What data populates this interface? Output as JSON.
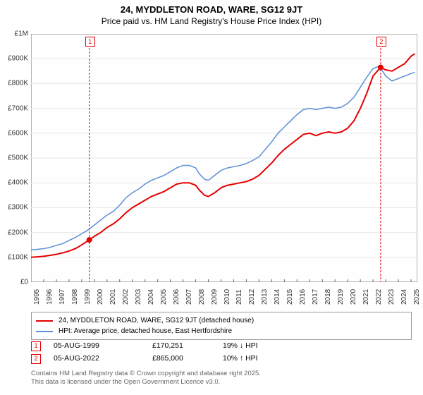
{
  "title": "24, MYDDLETON ROAD, WARE, SG12 9JT",
  "subtitle": "Price paid vs. HM Land Registry's House Price Index (HPI)",
  "chart": {
    "type": "line",
    "x_range": [
      1995,
      2025.5
    ],
    "y_range": [
      0,
      1000000
    ],
    "y_ticks": [
      0,
      100000,
      200000,
      300000,
      400000,
      500000,
      600000,
      700000,
      800000,
      900000,
      1000000
    ],
    "y_tick_labels": [
      "£0",
      "£100K",
      "£200K",
      "£300K",
      "£400K",
      "£500K",
      "£600K",
      "£700K",
      "£800K",
      "£900K",
      "£1M"
    ],
    "x_ticks": [
      1995,
      1996,
      1997,
      1998,
      1999,
      2000,
      2001,
      2002,
      2003,
      2004,
      2005,
      2006,
      2007,
      2008,
      2009,
      2010,
      2011,
      2012,
      2013,
      2014,
      2015,
      2016,
      2017,
      2018,
      2019,
      2020,
      2021,
      2022,
      2023,
      2024,
      2025
    ],
    "background_color": "#fefefe",
    "grid_color": "#e8e8e8",
    "axis_color": "#666666",
    "series": [
      {
        "name": "property",
        "label": "24, MYDDLETON ROAD, WARE, SG12 9JT (detached house)",
        "color": "#e60000",
        "line_width": 2,
        "data": [
          [
            1995,
            100000
          ],
          [
            1995.5,
            102000
          ],
          [
            1996,
            104000
          ],
          [
            1996.5,
            108000
          ],
          [
            1997,
            112000
          ],
          [
            1997.5,
            118000
          ],
          [
            1998,
            125000
          ],
          [
            1998.5,
            135000
          ],
          [
            1999,
            150000
          ],
          [
            1999.6,
            170251
          ],
          [
            2000,
            185000
          ],
          [
            2000.5,
            200000
          ],
          [
            2001,
            220000
          ],
          [
            2001.5,
            235000
          ],
          [
            2002,
            255000
          ],
          [
            2002.5,
            280000
          ],
          [
            2003,
            300000
          ],
          [
            2003.5,
            315000
          ],
          [
            2004,
            330000
          ],
          [
            2004.5,
            345000
          ],
          [
            2005,
            355000
          ],
          [
            2005.5,
            365000
          ],
          [
            2006,
            380000
          ],
          [
            2006.5,
            395000
          ],
          [
            2007,
            400000
          ],
          [
            2007.5,
            400000
          ],
          [
            2008,
            390000
          ],
          [
            2008.3,
            370000
          ],
          [
            2008.7,
            350000
          ],
          [
            2009,
            345000
          ],
          [
            2009.5,
            360000
          ],
          [
            2010,
            380000
          ],
          [
            2010.5,
            390000
          ],
          [
            2011,
            395000
          ],
          [
            2011.5,
            400000
          ],
          [
            2012,
            405000
          ],
          [
            2012.5,
            415000
          ],
          [
            2013,
            430000
          ],
          [
            2013.5,
            455000
          ],
          [
            2014,
            480000
          ],
          [
            2014.5,
            510000
          ],
          [
            2015,
            535000
          ],
          [
            2015.5,
            555000
          ],
          [
            2016,
            575000
          ],
          [
            2016.5,
            595000
          ],
          [
            2017,
            600000
          ],
          [
            2017.5,
            590000
          ],
          [
            2018,
            600000
          ],
          [
            2018.5,
            605000
          ],
          [
            2019,
            600000
          ],
          [
            2019.5,
            605000
          ],
          [
            2020,
            620000
          ],
          [
            2020.5,
            650000
          ],
          [
            2021,
            700000
          ],
          [
            2021.5,
            760000
          ],
          [
            2022,
            830000
          ],
          [
            2022.6,
            865000
          ],
          [
            2023,
            855000
          ],
          [
            2023.5,
            850000
          ],
          [
            2024,
            865000
          ],
          [
            2024.5,
            880000
          ],
          [
            2025,
            910000
          ],
          [
            2025.3,
            920000
          ]
        ]
      },
      {
        "name": "hpi",
        "label": "HPI: Average price, detached house, East Hertfordshire",
        "color": "#5b8fd6",
        "line_width": 1.5,
        "data": [
          [
            1995,
            130000
          ],
          [
            1995.5,
            132000
          ],
          [
            1996,
            135000
          ],
          [
            1996.5,
            140000
          ],
          [
            1997,
            148000
          ],
          [
            1997.5,
            155000
          ],
          [
            1998,
            168000
          ],
          [
            1998.5,
            180000
          ],
          [
            1999,
            195000
          ],
          [
            1999.5,
            210000
          ],
          [
            2000,
            230000
          ],
          [
            2000.5,
            250000
          ],
          [
            2001,
            270000
          ],
          [
            2001.5,
            285000
          ],
          [
            2002,
            310000
          ],
          [
            2002.5,
            340000
          ],
          [
            2003,
            360000
          ],
          [
            2003.5,
            375000
          ],
          [
            2004,
            395000
          ],
          [
            2004.5,
            410000
          ],
          [
            2005,
            420000
          ],
          [
            2005.5,
            430000
          ],
          [
            2006,
            445000
          ],
          [
            2006.5,
            460000
          ],
          [
            2007,
            470000
          ],
          [
            2007.5,
            470000
          ],
          [
            2008,
            460000
          ],
          [
            2008.3,
            435000
          ],
          [
            2008.7,
            415000
          ],
          [
            2009,
            410000
          ],
          [
            2009.5,
            430000
          ],
          [
            2010,
            450000
          ],
          [
            2010.5,
            460000
          ],
          [
            2011,
            465000
          ],
          [
            2011.5,
            470000
          ],
          [
            2012,
            478000
          ],
          [
            2012.5,
            490000
          ],
          [
            2013,
            505000
          ],
          [
            2013.5,
            535000
          ],
          [
            2014,
            565000
          ],
          [
            2014.5,
            600000
          ],
          [
            2015,
            625000
          ],
          [
            2015.5,
            650000
          ],
          [
            2016,
            675000
          ],
          [
            2016.5,
            695000
          ],
          [
            2017,
            700000
          ],
          [
            2017.5,
            695000
          ],
          [
            2018,
            700000
          ],
          [
            2018.5,
            705000
          ],
          [
            2019,
            700000
          ],
          [
            2019.5,
            705000
          ],
          [
            2020,
            720000
          ],
          [
            2020.5,
            745000
          ],
          [
            2021,
            785000
          ],
          [
            2021.5,
            825000
          ],
          [
            2022,
            860000
          ],
          [
            2022.5,
            870000
          ],
          [
            2023,
            830000
          ],
          [
            2023.5,
            810000
          ],
          [
            2024,
            820000
          ],
          [
            2024.5,
            830000
          ],
          [
            2025,
            840000
          ],
          [
            2025.3,
            845000
          ]
        ]
      }
    ],
    "markers": [
      {
        "id": "1",
        "x": 1999.6,
        "y": 170251,
        "color": "#e60000"
      },
      {
        "id": "2",
        "x": 2022.6,
        "y": 865000,
        "color": "#e60000"
      }
    ]
  },
  "legend": {
    "property_color": "#e60000",
    "property_label": "24, MYDDLETON ROAD, WARE, SG12 9JT (detached house)",
    "hpi_color": "#5b8fd6",
    "hpi_label": "HPI: Average price, detached house, East Hertfordshire"
  },
  "transactions": [
    {
      "id": "1",
      "color": "#e60000",
      "date": "05-AUG-1999",
      "price": "£170,251",
      "delta": "19% ↓ HPI"
    },
    {
      "id": "2",
      "color": "#e60000",
      "date": "05-AUG-2022",
      "price": "£865,000",
      "delta": "10% ↑ HPI"
    }
  ],
  "footer": {
    "line1": "Contains HM Land Registry data © Crown copyright and database right 2025.",
    "line2": "This data is licensed under the Open Government Licence v3.0."
  }
}
